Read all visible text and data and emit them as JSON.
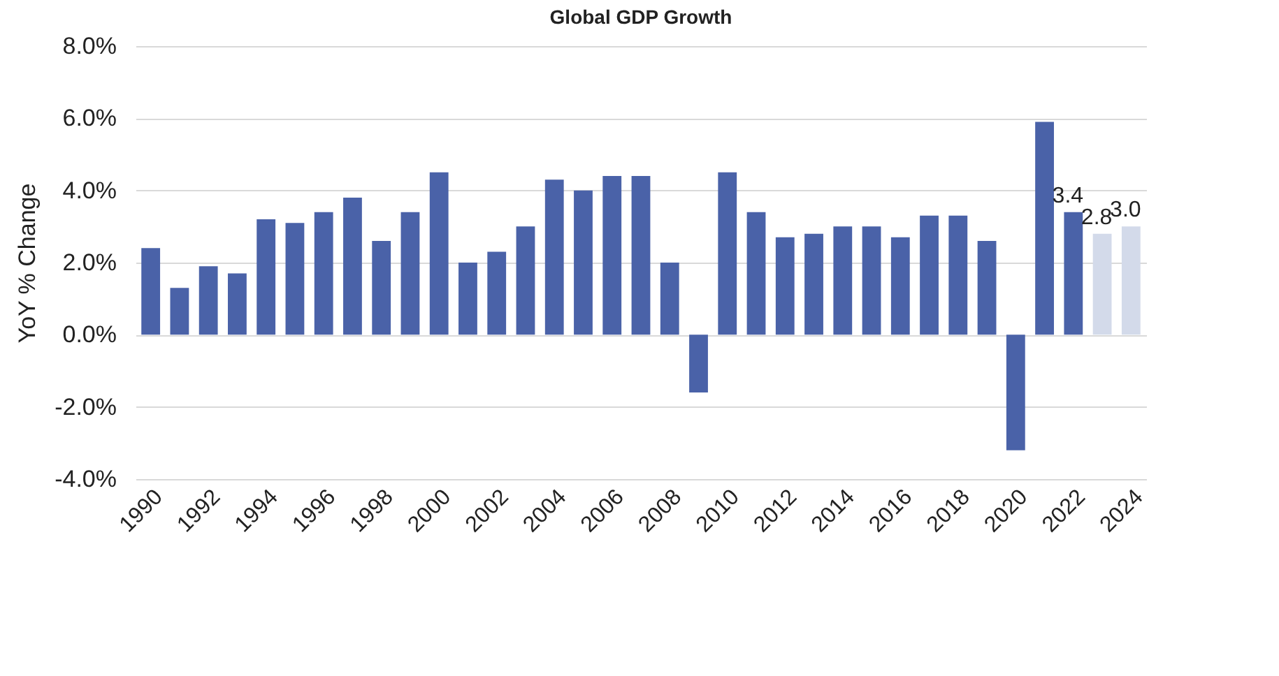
{
  "chart_data": {
    "type": "bar",
    "title": "Global GDP Growth",
    "ylabel": "YoY % Change",
    "categories": [
      "1990",
      null,
      "1992",
      null,
      "1994",
      null,
      "1996",
      null,
      "1998",
      null,
      "2000",
      null,
      "2002",
      null,
      "2004",
      null,
      "2006",
      null,
      "2008",
      null,
      "2010",
      null,
      "2012",
      null,
      "2014",
      null,
      "2016",
      null,
      "2018",
      null,
      "2020",
      null,
      "2022",
      null,
      "2024"
    ],
    "values": [
      2.4,
      1.3,
      1.9,
      1.7,
      3.2,
      3.1,
      3.4,
      3.8,
      2.6,
      3.4,
      4.5,
      2.0,
      2.3,
      3.0,
      4.3,
      4.0,
      4.4,
      4.4,
      2.0,
      -1.6,
      4.5,
      3.4,
      2.7,
      2.8,
      3.0,
      3.0,
      2.7,
      3.3,
      3.3,
      2.6,
      -3.2,
      5.9,
      3.4,
      2.8,
      3.0
    ],
    "colors": [
      "#4a62a8",
      "#4a62a8",
      "#4a62a8",
      "#4a62a8",
      "#4a62a8",
      "#4a62a8",
      "#4a62a8",
      "#4a62a8",
      "#4a62a8",
      "#4a62a8",
      "#4a62a8",
      "#4a62a8",
      "#4a62a8",
      "#4a62a8",
      "#4a62a8",
      "#4a62a8",
      "#4a62a8",
      "#4a62a8",
      "#4a62a8",
      "#4a62a8",
      "#4a62a8",
      "#4a62a8",
      "#4a62a8",
      "#4a62a8",
      "#4a62a8",
      "#4a62a8",
      "#4a62a8",
      "#4a62a8",
      "#4a62a8",
      "#4a62a8",
      "#4a62a8",
      "#4a62a8",
      "#4a62a8",
      "#d3daea",
      "#d3daea"
    ],
    "value_labels": [
      null,
      null,
      null,
      null,
      null,
      null,
      null,
      null,
      null,
      null,
      null,
      null,
      null,
      null,
      null,
      null,
      null,
      null,
      null,
      null,
      null,
      null,
      null,
      null,
      null,
      null,
      null,
      null,
      null,
      null,
      null,
      null,
      "3.4",
      "2.8",
      "3.0"
    ],
    "ylim": [
      -4.0,
      8.0
    ],
    "yticks": [
      {
        "value": -4,
        "label": "-4.0%"
      },
      {
        "value": -2,
        "label": "-2.0%"
      },
      {
        "value": 0,
        "label": "0.0%"
      },
      {
        "value": 2,
        "label": "2.0%"
      },
      {
        "value": 4,
        "label": "4.0%"
      },
      {
        "value": 6,
        "label": "6.0%"
      },
      {
        "value": 8,
        "label": "8.0%"
      }
    ],
    "grid": "y"
  }
}
